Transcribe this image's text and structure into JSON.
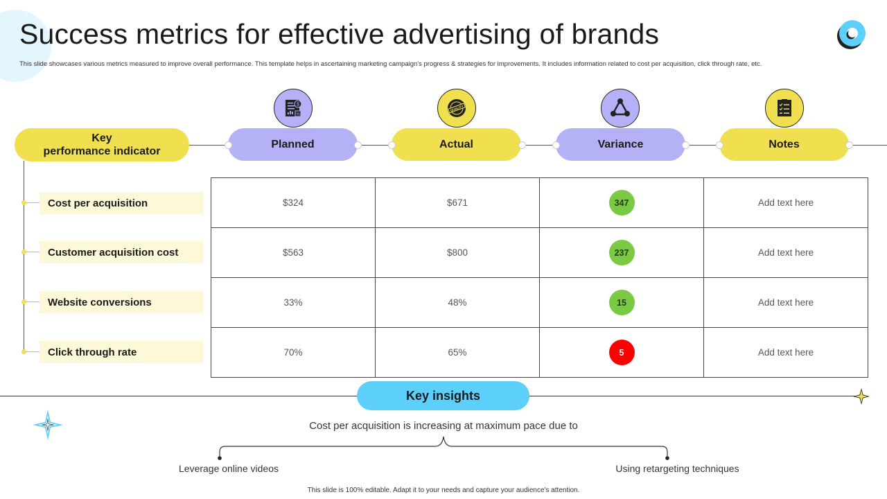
{
  "title": "Success metrics for effective advertising of brands",
  "subtitle": "This slide showcases various metrics measured to improve overall performance. This template  helps in  ascertaining marketing campaign's  progress & strategies for improvements. It  includes information related to cost per acquisition, click through rate, etc.",
  "header": {
    "kpi_line1": "Key",
    "kpi_line2": "performance indicator",
    "columns": [
      "Planned",
      "Actual",
      "Variance",
      "Notes"
    ]
  },
  "rows": [
    {
      "kpi": "Cost per acquisition",
      "planned": "$324",
      "actual": "$671",
      "variance": "347",
      "variance_color": "#7ac943",
      "notes": "Add text here"
    },
    {
      "kpi": "Customer acquisition cost",
      "planned": "$563",
      "actual": "$800",
      "variance": "237",
      "variance_color": "#7ac943",
      "notes": "Add text here"
    },
    {
      "kpi": "Website conversions",
      "planned": "33%",
      "actual": "48%",
      "variance": "15",
      "variance_color": "#7ac943",
      "notes": "Add text here"
    },
    {
      "kpi": "Click through rate",
      "planned": "70%",
      "actual": "65%",
      "variance": "5",
      "variance_color": "#ff0000",
      "notes": "Add text here"
    }
  ],
  "insights": {
    "label": "Key insights",
    "statement": "Cost per acquisition is increasing at maximum  pace due to",
    "reason_left": "Leverage online videos",
    "reason_right": "Using retargeting techniques"
  },
  "footer": "This slide is 100% editable.  Adapt it to your needs and capture your audience's attention.",
  "icons": {
    "planned": "document-chart-icon",
    "actual": "quality-seal-icon",
    "variance": "triangle-cycle-icon",
    "notes": "checklist-icon"
  },
  "colors": {
    "yellow": "#f0e050",
    "purple": "#b4b1f6",
    "blue": "#5ccffa",
    "green": "#7ac943",
    "red": "#ff0000"
  }
}
